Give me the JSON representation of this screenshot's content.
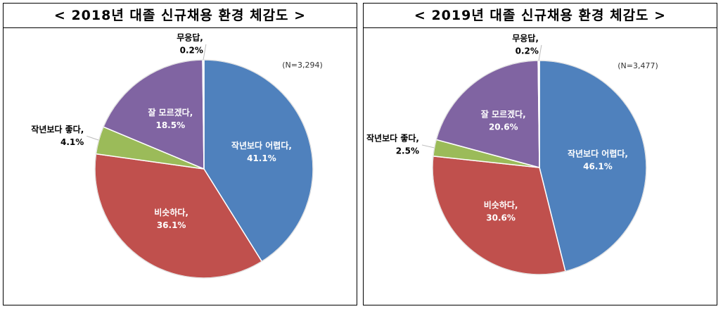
{
  "chart_data": [
    {
      "type": "pie",
      "title": "< 2018년 대졸 신규채용 환경 체감도 >",
      "note": "(N=3,294)",
      "categories": [
        "작년보다 어렵다,",
        "비슷하다,",
        "작년보다 좋다,",
        "잘 모르겠다,",
        "무응답,"
      ],
      "values": [
        41.1,
        36.1,
        4.1,
        18.5,
        0.2
      ],
      "value_labels": [
        "41.1%",
        "36.1%",
        "4.1%",
        "18.5%",
        "0.2%"
      ],
      "colors": [
        "#4f81bd",
        "#c0504d",
        "#9bbb59",
        "#8064a2",
        "#ffffff"
      ]
    },
    {
      "type": "pie",
      "title": "< 2019년 대졸 신규채용 환경 체감도 >",
      "note": "(N=3,477)",
      "categories": [
        "작년보다 어렵다,",
        "비슷하다,",
        "작년보다 좋다,",
        "잘 모르겠다,",
        "무응답,"
      ],
      "values": [
        46.1,
        30.6,
        2.5,
        20.6,
        0.2
      ],
      "value_labels": [
        "46.1%",
        "30.6%",
        "2.5%",
        "20.6%",
        "0.2%"
      ],
      "colors": [
        "#4f81bd",
        "#c0504d",
        "#9bbb59",
        "#8064a2",
        "#ffffff"
      ]
    }
  ]
}
